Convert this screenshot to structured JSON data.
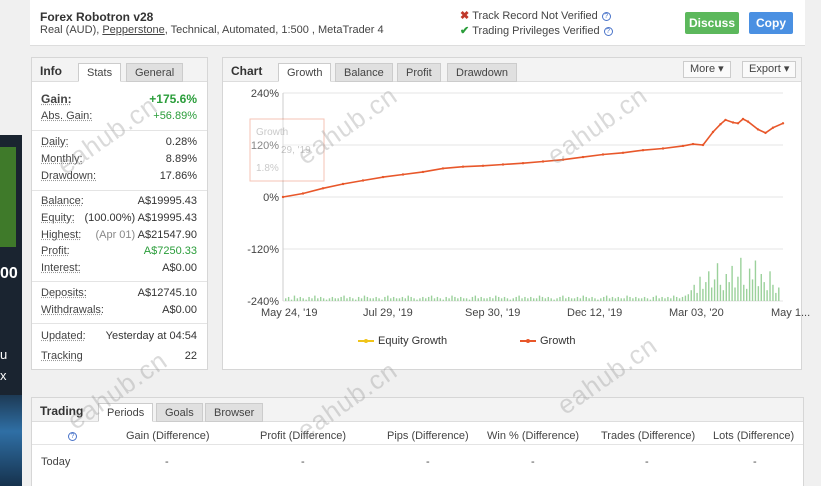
{
  "header": {
    "title": "Forex Robotron v28",
    "subtitle_pre": "Real (AUD), ",
    "broker": "Pepperstone",
    "subtitle_post": ", Technical, Automated, 1:500 , MetaTrader 4",
    "track_record": "Track Record Not Verified",
    "trading_privileges": "Trading Privileges Verified",
    "discuss_label": "Discuss",
    "copy_label": "Copy"
  },
  "info": {
    "title": "Info",
    "tabs": [
      "Stats",
      "General"
    ],
    "rows": {
      "gain": {
        "k": "Gain:",
        "v": "+175.6%"
      },
      "abs_gain": {
        "k": "Abs. Gain:",
        "v": "+56.89%"
      },
      "daily": {
        "k": "Daily:",
        "v": "0.28%"
      },
      "monthly": {
        "k": "Monthly:",
        "v": "8.89%"
      },
      "drawdown": {
        "k": "Drawdown:",
        "v": "17.86%"
      },
      "balance": {
        "k": "Balance:",
        "v": "A$19995.43"
      },
      "equity": {
        "k": "Equity:",
        "note": "(100.00%)",
        "v": "A$19995.43"
      },
      "highest": {
        "k": "Highest:",
        "note": "(Apr 01)",
        "v": "A$21547.90"
      },
      "profit": {
        "k": "Profit:",
        "v": "A$7250.33"
      },
      "interest": {
        "k": "Interest:",
        "v": "A$0.00"
      },
      "deposits": {
        "k": "Deposits:",
        "v": "A$12745.10"
      },
      "withdrawals": {
        "k": "Withdrawals:",
        "v": "A$0.00"
      },
      "updated": {
        "k": "Updated:",
        "v": "Yesterday at 04:54"
      },
      "tracking": {
        "k": "Tracking",
        "v": "22"
      }
    }
  },
  "chart_panel": {
    "title": "Chart",
    "tabs": [
      "Growth",
      "Balance",
      "Profit",
      "Drawdown"
    ],
    "more_label": "More",
    "export_label": "Export",
    "tooltip_title": "Growth",
    "tooltip_line1": "29, '19",
    "tooltip_line2": "1.8%"
  },
  "chart_data": {
    "type": "line",
    "yticks": [
      "240%",
      "120%",
      "0%",
      "-120%",
      "-240%"
    ],
    "xticks": [
      "May 24, '19",
      "Jul 29, '19",
      "Sep 30, '19",
      "Dec 12, '19",
      "Mar 03, '20",
      "May 1..."
    ],
    "ylim": [
      -240,
      240
    ],
    "series": [
      {
        "name": "Equity Growth",
        "color": "#f0c419",
        "values": []
      },
      {
        "name": "Growth",
        "color": "#e8572a",
        "x": [
          0,
          0.04,
          0.08,
          0.12,
          0.16,
          0.2,
          0.24,
          0.28,
          0.32,
          0.36,
          0.4,
          0.44,
          0.48,
          0.52,
          0.56,
          0.6,
          0.64,
          0.68,
          0.72,
          0.76,
          0.8,
          0.82,
          0.84,
          0.86,
          0.875,
          0.885,
          0.9,
          0.91,
          0.92,
          0.93,
          0.95,
          0.965,
          0.98,
          1.0
        ],
        "values": [
          0,
          8,
          20,
          30,
          38,
          46,
          52,
          58,
          66,
          70,
          72,
          75,
          78,
          82,
          86,
          92,
          98,
          102,
          108,
          112,
          118,
          122,
          120,
          150,
          168,
          178,
          172,
          170,
          180,
          174,
          156,
          148,
          160,
          170
        ]
      }
    ],
    "bars": [
      2,
      3,
      1,
      4,
      2,
      3,
      2,
      1,
      3,
      2,
      4,
      2,
      3,
      2,
      1,
      2,
      3,
      2,
      2,
      3,
      4,
      2,
      3,
      2,
      1,
      3,
      2,
      4,
      3,
      2,
      2,
      3,
      2,
      1,
      3,
      4,
      2,
      3,
      2,
      2,
      3,
      2,
      4,
      3,
      2,
      1,
      2,
      3,
      2,
      3,
      4,
      2,
      3,
      2,
      1,
      3,
      2,
      4,
      3,
      2,
      3,
      2,
      2,
      1,
      3,
      4,
      2,
      3,
      2,
      2,
      3,
      2,
      4,
      3,
      2,
      3,
      2,
      1,
      2,
      3,
      4,
      2,
      3,
      2,
      3,
      2,
      2,
      4,
      3,
      2,
      3,
      2,
      1,
      2,
      3,
      4,
      2,
      3,
      2,
      2,
      3,
      2,
      4,
      3,
      2,
      3,
      2,
      1,
      2,
      3,
      4,
      2,
      3,
      2,
      3,
      2,
      2,
      4,
      3,
      2,
      3,
      2,
      2,
      3,
      2,
      1,
      3,
      4,
      2,
      3,
      2,
      3,
      2,
      4,
      3,
      2,
      3,
      4,
      5,
      8,
      12,
      6,
      18,
      9,
      14,
      22,
      10,
      16,
      28,
      12,
      8,
      20,
      14,
      26,
      10,
      18,
      32,
      12,
      9,
      24,
      16,
      30,
      11,
      20,
      14,
      8,
      22,
      12,
      6,
      10
    ],
    "legend_placement": "bottom",
    "grid": true
  },
  "trading": {
    "title": "Trading",
    "tabs": [
      "Periods",
      "Goals",
      "Browser"
    ],
    "columns": [
      "Gain (Difference)",
      "Profit (Difference)",
      "Pips (Difference)",
      "Win % (Difference)",
      "Trades (Difference)",
      "Lots (Difference)"
    ],
    "row_label": "Today",
    "row_values": [
      "-",
      "-",
      "-",
      "-",
      "-",
      "-"
    ]
  },
  "watermark": "eahub.cn",
  "ad": {
    "line1": "00",
    "line2": "u",
    "line3": "x"
  }
}
